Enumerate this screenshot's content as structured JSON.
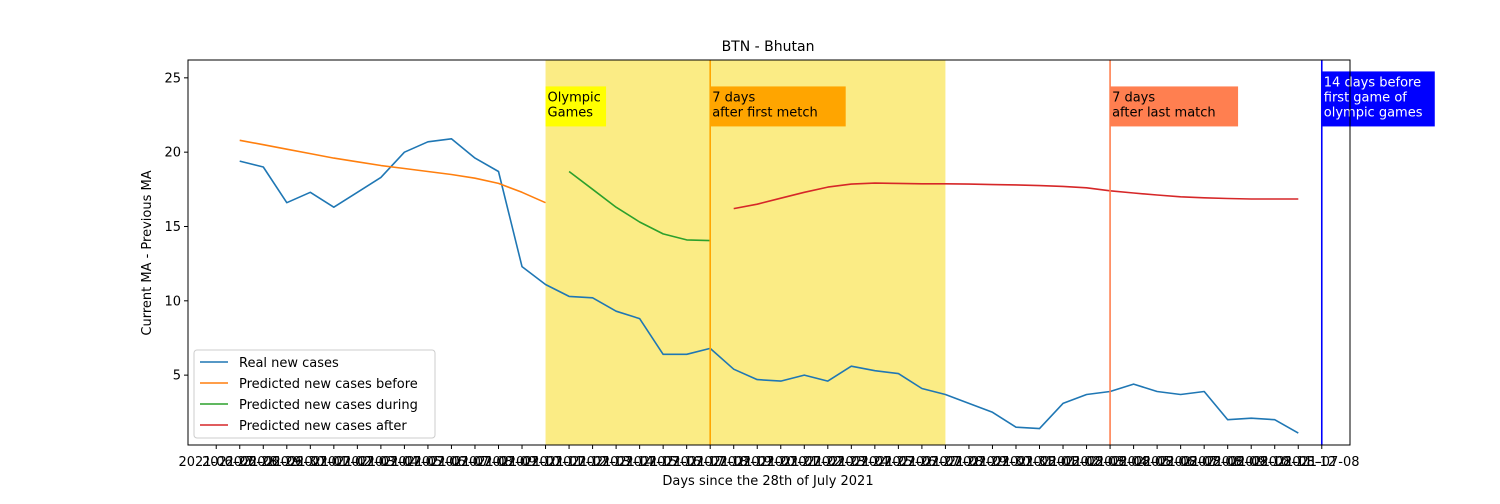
{
  "chart_data": {
    "type": "line",
    "title": "BTN - Bhutan",
    "xlabel": "Days since the 28th of July 2021",
    "ylabel": "Current MA - Previous MA",
    "ylim": [
      0.3,
      26.2
    ],
    "yticks": [
      5,
      10,
      15,
      20,
      25
    ],
    "xlim": [
      -2.2,
      47.2
    ],
    "x_tick_labels": [
      "2021-06-27",
      "2021-06-28",
      "2021-06-29",
      "2021-06-30",
      "2021-07-01",
      "2021-07-02",
      "2021-07-03",
      "2021-07-04",
      "2021-07-05",
      "2021-07-06",
      "2021-07-07",
      "2021-07-08",
      "2021-07-09",
      "2021-07-10",
      "2021-07-11",
      "2021-07-12",
      "2021-07-13",
      "2021-07-14",
      "2021-07-15",
      "2021-07-16",
      "2021-07-17",
      "2021-07-18",
      "2021-07-19",
      "2021-07-20",
      "2021-07-21",
      "2021-07-22",
      "2021-07-23",
      "2021-07-24",
      "2021-07-25",
      "2021-07-26",
      "2021-07-27",
      "2021-07-28",
      "2021-07-29",
      "2021-07-30",
      "2021-07-31",
      "2021-08-01",
      "2021-08-02",
      "2021-08-03",
      "2021-08-04",
      "2021-08-05",
      "2021-08-06",
      "2021-08-07",
      "2021-08-08",
      "2021-08-09",
      "2021-08-10",
      "2021-08-11",
      "2021-08-12",
      "2021-07-08"
    ],
    "legend_position": "lower-left",
    "series": [
      {
        "name": "Real new cases",
        "color": "#1f77b4",
        "x": [
          0,
          1,
          2,
          3,
          4,
          5,
          6,
          7,
          8,
          9,
          10,
          11,
          12,
          13,
          14,
          15,
          16,
          17,
          18,
          19,
          20,
          21,
          22,
          23,
          24,
          25,
          26,
          27,
          28,
          29,
          30,
          31,
          32,
          33,
          34,
          35,
          36,
          37,
          38,
          39,
          40,
          41,
          42,
          43,
          44,
          45
        ],
        "values": [
          19.4,
          19.0,
          16.6,
          17.3,
          16.3,
          17.3,
          18.3,
          20.0,
          20.7,
          20.9,
          19.6,
          18.7,
          12.3,
          11.1,
          10.3,
          10.2,
          9.3,
          8.8,
          6.4,
          6.4,
          6.8,
          5.4,
          4.7,
          4.6,
          5.0,
          4.6,
          5.6,
          5.3,
          5.1,
          4.1,
          3.7,
          3.1,
          2.5,
          1.5,
          1.4,
          3.1,
          3.7,
          3.9,
          4.4,
          3.9,
          3.7,
          3.9,
          2.0,
          2.1,
          2.0,
          1.1
        ]
      },
      {
        "name": "Predicted new cases before",
        "color": "#ff7f0e",
        "x": [
          0,
          1,
          2,
          3,
          4,
          5,
          6,
          7,
          8,
          9,
          10,
          11,
          12,
          13
        ],
        "values": [
          20.8,
          20.5,
          20.2,
          19.9,
          19.6,
          19.35,
          19.1,
          18.9,
          18.7,
          18.5,
          18.25,
          17.9,
          17.3,
          16.6
        ]
      },
      {
        "name": "Predicted new cases during",
        "color": "#2ca02c",
        "x": [
          14,
          15,
          16,
          17,
          18,
          19,
          20
        ],
        "values": [
          18.7,
          17.5,
          16.3,
          15.3,
          14.5,
          14.1,
          14.05
        ]
      },
      {
        "name": "Predicted new cases after",
        "color": "#d62728",
        "x": [
          21,
          22,
          23,
          24,
          25,
          26,
          27,
          28,
          29,
          30,
          31,
          32,
          33,
          34,
          35,
          36,
          37,
          38,
          39,
          40,
          41,
          42,
          43,
          44,
          45
        ],
        "values": [
          16.2,
          16.5,
          16.9,
          17.3,
          17.65,
          17.85,
          17.92,
          17.9,
          17.87,
          17.87,
          17.85,
          17.82,
          17.8,
          17.75,
          17.7,
          17.6,
          17.4,
          17.25,
          17.12,
          17.0,
          16.93,
          16.88,
          16.85,
          16.85,
          16.85
        ]
      }
    ],
    "shaded_region": {
      "x": [
        13,
        30
      ],
      "color": "#fbec85"
    },
    "vlines": [
      {
        "x": 20,
        "color": "#ffa500"
      },
      {
        "x": 37,
        "color": "#ff7f50"
      },
      {
        "x": 46,
        "color": "#0000ff"
      }
    ],
    "annotations": [
      {
        "lines": [
          "Olympic",
          "Games"
        ],
        "x": 13,
        "y": 22,
        "bg": "#ffff00",
        "fg": "#000000"
      },
      {
        "lines": [
          "7 days",
          "after first metch"
        ],
        "x": 20,
        "y": 22,
        "bg": "#ffa500",
        "fg": "#000000"
      },
      {
        "lines": [
          "7 days",
          "after last match"
        ],
        "x": 37,
        "y": 22,
        "bg": "#ff7f50",
        "fg": "#000000"
      },
      {
        "lines": [
          "14 days before",
          "first game of",
          "olympic games"
        ],
        "x": 46,
        "y": 22,
        "bg": "#0000ff",
        "fg": "#ffffff"
      }
    ]
  }
}
